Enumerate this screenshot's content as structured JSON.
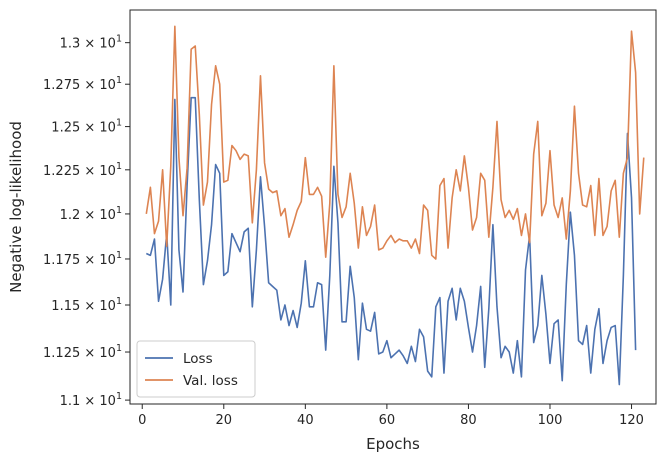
{
  "chart_data": {
    "type": "line",
    "xlabel": "Epochs",
    "ylabel": "Negative log-likelihood",
    "xlim": [
      -3,
      126
    ],
    "ylim": [
      10.98,
      13.2
    ],
    "x_ticks": [
      0,
      20,
      40,
      60,
      80,
      100,
      120
    ],
    "y_ticks": [
      {
        "value": 11.0,
        "mantissa": "1.1",
        "exponent": "1"
      },
      {
        "value": 11.25,
        "mantissa": "1.125",
        "exponent": "1"
      },
      {
        "value": 11.5,
        "mantissa": "1.15",
        "exponent": "1"
      },
      {
        "value": 11.75,
        "mantissa": "1.175",
        "exponent": "1"
      },
      {
        "value": 12.0,
        "mantissa": "1.2",
        "exponent": "1"
      },
      {
        "value": 12.25,
        "mantissa": "1.225",
        "exponent": "1"
      },
      {
        "value": 12.5,
        "mantissa": "1.25",
        "exponent": "1"
      },
      {
        "value": 12.75,
        "mantissa": "1.275",
        "exponent": "1"
      },
      {
        "value": 13.0,
        "mantissa": "1.3",
        "exponent": "1"
      }
    ],
    "grid": false,
    "legend_position": "lower-left",
    "series": [
      {
        "name": "Loss",
        "color": "#4c72b0",
        "x_start": 1,
        "values": [
          11.78,
          11.77,
          11.86,
          11.52,
          11.64,
          11.89,
          11.5,
          12.66,
          11.8,
          11.57,
          12.16,
          12.67,
          12.67,
          12.08,
          11.61,
          11.74,
          11.94,
          12.28,
          12.23,
          11.66,
          11.68,
          11.89,
          11.84,
          11.79,
          11.9,
          11.92,
          11.49,
          11.8,
          12.21,
          11.93,
          11.62,
          11.6,
          11.58,
          11.42,
          11.5,
          11.39,
          11.47,
          11.38,
          11.51,
          11.74,
          11.49,
          11.49,
          11.62,
          11.61,
          11.26,
          11.66,
          12.27,
          11.95,
          11.41,
          11.41,
          11.71,
          11.54,
          11.21,
          11.51,
          11.37,
          11.36,
          11.46,
          11.24,
          11.25,
          11.31,
          11.22,
          11.24,
          11.26,
          11.23,
          11.19,
          11.28,
          11.2,
          11.37,
          11.33,
          11.15,
          11.12,
          11.49,
          11.54,
          11.14,
          11.52,
          11.59,
          11.42,
          11.59,
          11.52,
          11.38,
          11.25,
          11.39,
          11.6,
          11.17,
          11.48,
          11.94,
          11.49,
          11.22,
          11.28,
          11.25,
          11.14,
          11.31,
          11.12,
          11.69,
          11.88,
          11.3,
          11.39,
          11.66,
          11.45,
          11.19,
          11.4,
          11.42,
          11.1,
          11.61,
          12.01,
          11.77,
          11.31,
          11.29,
          11.39,
          11.14,
          11.37,
          11.48,
          11.19,
          11.31,
          11.38,
          11.39,
          11.08,
          11.66,
          12.46,
          12.09,
          11.26
        ]
      },
      {
        "name": "Val. loss",
        "color": "#dd8452",
        "x_start": 1,
        "values": [
          12.0,
          12.15,
          11.89,
          11.96,
          12.25,
          11.82,
          12.27,
          13.1,
          12.32,
          11.99,
          12.26,
          12.96,
          12.98,
          12.57,
          12.05,
          12.18,
          12.63,
          12.86,
          12.75,
          12.18,
          12.19,
          12.39,
          12.36,
          12.31,
          12.34,
          12.33,
          11.95,
          12.25,
          12.8,
          12.29,
          12.14,
          12.12,
          12.13,
          11.99,
          12.03,
          11.87,
          11.94,
          12.02,
          12.07,
          12.32,
          12.11,
          12.11,
          12.15,
          12.1,
          11.76,
          12.06,
          12.86,
          12.11,
          11.98,
          12.04,
          12.23,
          12.06,
          11.81,
          12.04,
          11.88,
          11.93,
          12.05,
          11.8,
          11.81,
          11.85,
          11.88,
          11.84,
          11.86,
          11.85,
          11.85,
          11.81,
          11.86,
          11.78,
          12.05,
          12.02,
          11.77,
          11.75,
          12.16,
          12.2,
          11.81,
          12.09,
          12.25,
          12.13,
          12.33,
          12.15,
          11.91,
          11.98,
          12.23,
          12.19,
          11.87,
          12.15,
          12.53,
          12.08,
          11.98,
          12.02,
          11.97,
          12.03,
          11.88,
          12.0,
          11.84,
          12.34,
          12.53,
          11.99,
          12.06,
          12.36,
          12.05,
          11.98,
          12.09,
          11.86,
          12.13,
          12.62,
          12.23,
          12.05,
          12.04,
          12.16,
          11.88,
          12.2,
          11.88,
          11.93,
          12.13,
          12.19,
          11.87,
          12.23,
          12.32,
          13.07,
          12.82,
          12.0,
          12.32
        ]
      }
    ]
  }
}
